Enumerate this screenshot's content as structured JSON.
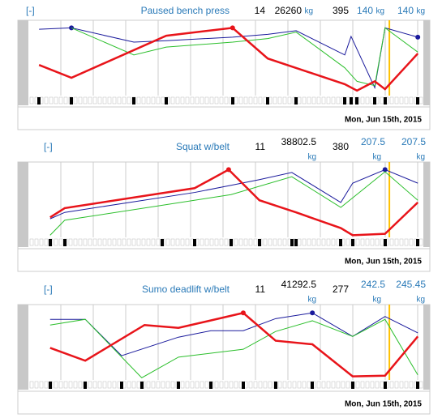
{
  "panels": [
    {
      "header": {
        "toggle": "[-]",
        "name": "Paused bench press",
        "sets": "14",
        "volume": "26260",
        "volume_unit": "kg",
        "reps": "395",
        "weight1": "140",
        "weight1_unit": "kg",
        "weight2": "140",
        "weight2_unit": "kg"
      },
      "date": "Mon, Jun 15th, 2015",
      "current": 91.4,
      "series": [
        {
          "color": "#1a1a9c",
          "marker": [
            1,
            11
          ],
          "x": [
            2.7,
            10.9,
            26.7,
            34.9,
            51.7,
            60.6,
            67.8,
            80.1,
            81.7,
            87.7,
            90.3,
            98.6
          ],
          "values": [
            93,
            95,
            75,
            77,
            82,
            86,
            91,
            57,
            83,
            11,
            95,
            82
          ]
        },
        {
          "color": "#2cbf2c",
          "marker": [],
          "x": [
            10.9,
            26.7,
            34.9,
            51.7,
            60.6,
            67.8,
            80.1,
            83.2,
            87.7,
            90.3,
            98.6
          ],
          "values": [
            95,
            57,
            68,
            75,
            80,
            89,
            39,
            20,
            14,
            95,
            61
          ]
        },
        {
          "color": "#e8141a",
          "marker": [
            3
          ],
          "x": [
            2.7,
            10.9,
            34.9,
            51.7,
            60.6,
            80.1,
            83.2,
            87.7,
            90.3,
            98.6
          ],
          "values": [
            43,
            25,
            84,
            95,
            52,
            16,
            7,
            20,
            9,
            59
          ]
        }
      ]
    },
    {
      "header": {
        "toggle": "[-]",
        "name": "Squat w/belt",
        "sets": "11",
        "volume": "38802.5",
        "volume_unit": "kg",
        "reps": "380",
        "weight1": "207.5",
        "weight1_unit": "kg",
        "weight2": "207.5",
        "weight2_unit": "kg"
      },
      "date": "Mon, Jun 15th, 2015",
      "current": 91.4,
      "series": [
        {
          "color": "#1a1a9c",
          "marker": [
            8
          ],
          "x": [
            5.5,
            9.2,
            42.1,
            51.3,
            58.5,
            66.7,
            79.1,
            82.1,
            90.3,
            98.6
          ],
          "values": [
            26,
            35,
            63,
            73,
            81,
            91,
            49,
            76,
            95,
            76
          ]
        },
        {
          "color": "#2cbf2c",
          "marker": [],
          "x": [
            5.5,
            9.2,
            33.9,
            51.3,
            66.7,
            79.1,
            90.3,
            98.6
          ],
          "values": [
            3,
            24,
            45,
            60,
            85,
            42,
            92,
            52
          ]
        },
        {
          "color": "#e8141a",
          "marker": [
            3
          ],
          "x": [
            5.5,
            9.2,
            42.1,
            50.7,
            58.5,
            67.8,
            79.1,
            82.1,
            90.3,
            98.6
          ],
          "values": [
            28,
            41,
            69,
            95,
            52,
            35,
            13,
            3,
            5,
            49
          ]
        }
      ]
    },
    {
      "header": {
        "toggle": "[-]",
        "name": "Sumo deadlift w/belt",
        "sets": "11",
        "volume": "41292.5",
        "volume_unit": "kg",
        "reps": "277",
        "weight1": "242.5",
        "weight1_unit": "kg",
        "weight2": "245.45",
        "weight2_unit": "kg"
      },
      "date": "Mon, Jun 15th, 2015",
      "current": 91.4,
      "series": [
        {
          "color": "#1a1a9c",
          "marker": [
            7
          ],
          "x": [
            5.5,
            14.4,
            23.6,
            38,
            46.2,
            54.4,
            62.6,
            71.9,
            82.1,
            90.3,
            98.6
          ],
          "values": [
            85,
            85,
            34,
            60,
            69,
            69,
            86,
            94,
            61,
            89,
            66
          ]
        },
        {
          "color": "#2cbf2c",
          "marker": [],
          "x": [
            5.5,
            14.4,
            28.7,
            38,
            54.4,
            62.6,
            71.9,
            82.1,
            90.3,
            98.6
          ],
          "values": [
            77,
            85,
            3,
            32,
            43,
            68,
            83,
            61,
            85,
            7
          ]
        },
        {
          "color": "#e8141a",
          "marker": [
            4
          ],
          "x": [
            5.5,
            14.4,
            29.4,
            38,
            54.4,
            62.6,
            71.9,
            82.1,
            90.3,
            98.6
          ],
          "values": [
            45,
            27,
            77,
            73,
            94,
            55,
            50,
            5,
            6,
            61
          ]
        }
      ]
    }
  ]
}
